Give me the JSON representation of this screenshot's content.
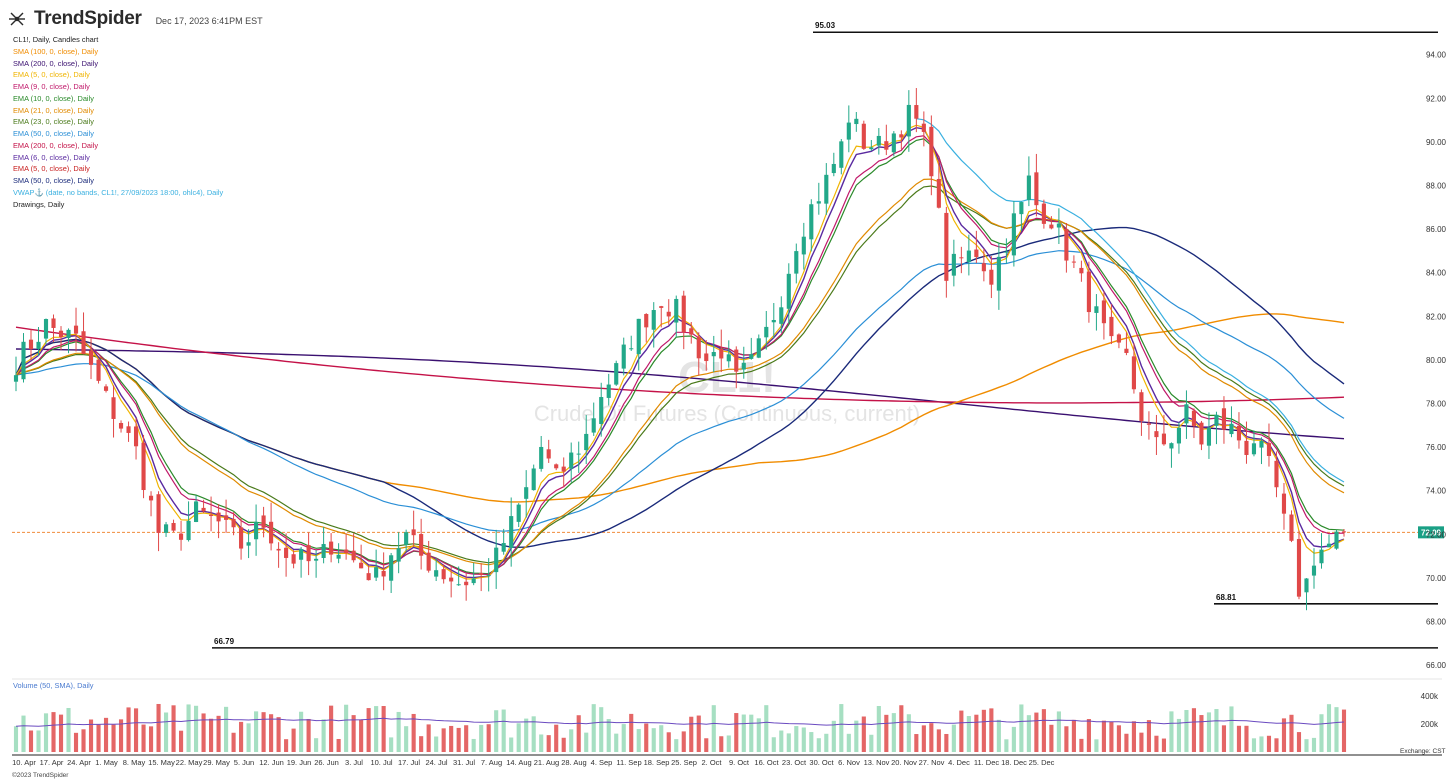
{
  "app": {
    "logo": "TrendSpider",
    "timestamp": "Dec 17, 2023 6:41PM EST",
    "copyright": "©2023 TrendSpider",
    "exchange": "Exchange: CST"
  },
  "watermark": {
    "ticker": "CL1!",
    "name": "Crude Oil Futures (Continuous, current)"
  },
  "indicators": [
    {
      "label": "CL1!, Daily, Candles chart",
      "color": "#222222"
    },
    {
      "label": "SMA (100, 0, close), Daily",
      "color": "#f08c00"
    },
    {
      "label": "SMA (200, 0, close), Daily",
      "color": "#3a1070"
    },
    {
      "label": "EMA (5, 0, close), Daily",
      "color": "#f0b400"
    },
    {
      "label": "EMA (9, 0, close), Daily",
      "color": "#c0186a"
    },
    {
      "label": "EMA (10, 0, close), Daily",
      "color": "#2a8a2a"
    },
    {
      "label": "EMA (21, 0, close), Daily",
      "color": "#e08a00"
    },
    {
      "label": "EMA (23, 0, close), Daily",
      "color": "#4a7a1a"
    },
    {
      "label": "EMA (50, 0, close), Daily",
      "color": "#2b8fd6"
    },
    {
      "label": "EMA (200, 0, close), Daily",
      "color": "#c41248"
    },
    {
      "label": "EMA (6, 0, close), Daily",
      "color": "#5a2aa0"
    },
    {
      "label": "EMA (5, 0, close), Daily",
      "color": "#c82020"
    },
    {
      "label": "SMA (50, 0, close), Daily",
      "color": "#1a2a7a"
    },
    {
      "label": "VWAP⚓ (date, no bands, CL1!, 27/09/2023 18:00, ohlc4), Daily",
      "color": "#3ab0e0"
    },
    {
      "label": "Drawings, Daily",
      "color": "#222222"
    }
  ],
  "volume_label": "Volume (50, SMA), Daily",
  "colors": {
    "up": "#22a889",
    "down": "#e04848",
    "vol_up": "#a6dfc2",
    "vol_down": "#e46666",
    "price_line": "#f08c3c",
    "price_tag": "#1aa085"
  },
  "chart_data": {
    "type": "candlestick",
    "ylim": [
      65.5,
      95.5
    ],
    "yticks": [
      "66.00",
      "68.00",
      "70.00",
      "72.00",
      "74.00",
      "76.00",
      "78.00",
      "80.00",
      "82.00",
      "84.00",
      "86.00",
      "88.00",
      "90.00",
      "92.00",
      "94.00"
    ],
    "xticks": [
      "10. Apr",
      "17. Apr",
      "24. Apr",
      "1. May",
      "8. May",
      "15. May",
      "22. May",
      "29. May",
      "5. Jun",
      "12. Jun",
      "19. Jun",
      "26. Jun",
      "3. Jul",
      "10. Jul",
      "17. Jul",
      "24. Jul",
      "31. Jul",
      "7. Aug",
      "14. Aug",
      "21. Aug",
      "28. Aug",
      "4. Sep",
      "11. Sep",
      "18. Sep",
      "25. Sep",
      "2. Oct",
      "9. Oct",
      "16. Oct",
      "23. Oct",
      "30. Oct",
      "6. Nov",
      "13. Nov",
      "20. Nov",
      "27. Nov",
      "4. Dec",
      "11. Dec",
      "18. Dec",
      "25. Dec"
    ],
    "last_price": "72.09",
    "last_value": 72.09,
    "levels": [
      {
        "label": "95.03",
        "value": 95.03
      },
      {
        "label": "68.81",
        "value": 68.81
      },
      {
        "label": "66.79",
        "value": 66.79
      }
    ],
    "close_points": [
      [
        0,
        79.9
      ],
      [
        4,
        81.6
      ],
      [
        8,
        80.9
      ],
      [
        12,
        78.2
      ],
      [
        16,
        75.8
      ],
      [
        19,
        72.1
      ],
      [
        21,
        71.8
      ],
      [
        24,
        73.0
      ],
      [
        27,
        72.5
      ],
      [
        30,
        71.5
      ],
      [
        33,
        72.5
      ],
      [
        36,
        71.0
      ],
      [
        40,
        70.6
      ],
      [
        42,
        71.6
      ],
      [
        45,
        70.8
      ],
      [
        48,
        70.0
      ],
      [
        50,
        71.2
      ],
      [
        52,
        71.9
      ],
      [
        54,
        71.0
      ],
      [
        57,
        70.2
      ],
      [
        59,
        69.8
      ],
      [
        62,
        70.0
      ],
      [
        64,
        70.9
      ],
      [
        66,
        72.4
      ],
      [
        68,
        74.0
      ],
      [
        70,
        76.0
      ],
      [
        72,
        74.5
      ],
      [
        74,
        75.5
      ],
      [
        76,
        76.5
      ],
      [
        78,
        78.5
      ],
      [
        80,
        79.5
      ],
      [
        82,
        81.0
      ],
      [
        84,
        82.0
      ],
      [
        86,
        82.8
      ],
      [
        88,
        82.2
      ],
      [
        90,
        81.0
      ],
      [
        92,
        80.0
      ],
      [
        94,
        80.5
      ],
      [
        96,
        79.0
      ],
      [
        98,
        79.8
      ],
      [
        100,
        81.2
      ],
      [
        102,
        83.0
      ],
      [
        104,
        85.5
      ],
      [
        106,
        87.0
      ],
      [
        108,
        88.2
      ],
      [
        110,
        89.8
      ],
      [
        111,
        91.2
      ],
      [
        113,
        90.0
      ],
      [
        115,
        89.8
      ],
      [
        117,
        90.4
      ],
      [
        119,
        91.2
      ],
      [
        120,
        90.9
      ],
      [
        122,
        89.0
      ],
      [
        123,
        86.5
      ],
      [
        124,
        84.0
      ],
      [
        126,
        84.6
      ],
      [
        128,
        85.0
      ],
      [
        130,
        83.8
      ],
      [
        132,
        85.5
      ],
      [
        133,
        86.4
      ],
      [
        134,
        87.0
      ],
      [
        135,
        88.2
      ],
      [
        136,
        87.1
      ],
      [
        138,
        86.5
      ],
      [
        140,
        85.0
      ],
      [
        142,
        83.5
      ],
      [
        144,
        82.0
      ],
      [
        146,
        80.5
      ],
      [
        148,
        80.0
      ],
      [
        150,
        77.5
      ],
      [
        152,
        76.0
      ],
      [
        154,
        76.5
      ],
      [
        156,
        77.5
      ],
      [
        158,
        76.3
      ],
      [
        160,
        77.2
      ],
      [
        162,
        76.8
      ],
      [
        164,
        76.0
      ],
      [
        165,
        76.4
      ],
      [
        167,
        75.0
      ],
      [
        168,
        74.0
      ],
      [
        169,
        72.5
      ],
      [
        170,
        71.2
      ],
      [
        171,
        69.5
      ],
      [
        172,
        69.8
      ],
      [
        173,
        71.0
      ],
      [
        174,
        71.3
      ],
      [
        175,
        71.5
      ],
      [
        176,
        71.8
      ],
      [
        177,
        72.09
      ]
    ],
    "volume_ylim": [
      0,
      500000
    ],
    "volume_yticks": [
      "400k",
      "200k"
    ],
    "volume_seed": 7
  }
}
